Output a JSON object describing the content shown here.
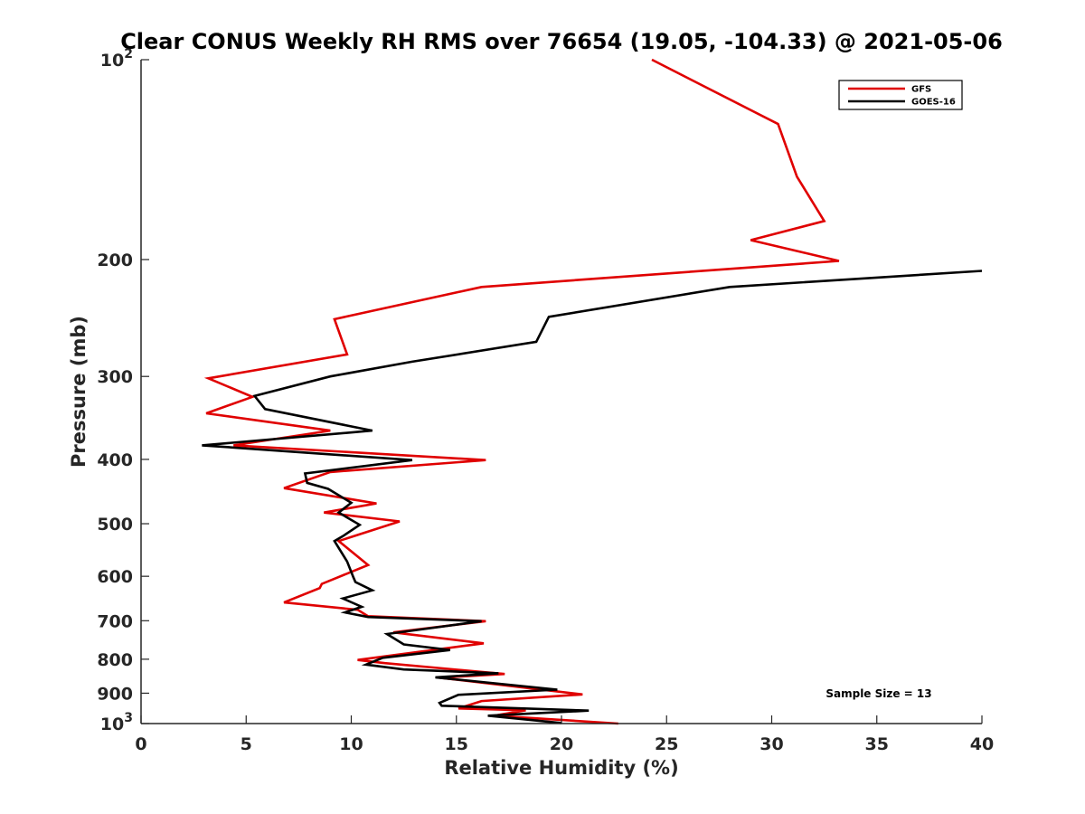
{
  "chart_data": {
    "type": "line",
    "title": "Clear CONUS Weekly RH RMS over 76654 (19.05, -104.33) @ 2021-05-06",
    "xlabel": "Relative Humidity (%)",
    "ylabel": "Pressure (mb)",
    "xlim": [
      0,
      40
    ],
    "ylim": [
      100,
      1000
    ],
    "yscale": "log",
    "y_reversed": true,
    "x_ticks": [
      0,
      5,
      10,
      15,
      20,
      25,
      30,
      35,
      40
    ],
    "x_tick_labels": [
      "0",
      "5",
      "10",
      "15",
      "20",
      "25",
      "30",
      "35",
      "40"
    ],
    "y_ticks": [
      100,
      200,
      300,
      400,
      500,
      600,
      700,
      800,
      900,
      1000
    ],
    "y_tick_labels": [
      {
        "base": "10",
        "exp": "2"
      },
      {
        "base": "200",
        "exp": ""
      },
      {
        "base": "300",
        "exp": ""
      },
      {
        "base": "400",
        "exp": ""
      },
      {
        "base": "500",
        "exp": ""
      },
      {
        "base": "600",
        "exp": ""
      },
      {
        "base": "700",
        "exp": ""
      },
      {
        "base": "800",
        "exp": ""
      },
      {
        "base": "900",
        "exp": ""
      },
      {
        "base": "10",
        "exp": "3"
      }
    ],
    "legend_position": "top-right",
    "annotation": "Sample Size = 13",
    "series": [
      {
        "name": "GFS",
        "color": "#e00000",
        "points": [
          [
            24.3,
            100
          ],
          [
            30.3,
            125
          ],
          [
            31.2,
            150
          ],
          [
            32.5,
            175
          ],
          [
            29.0,
            187
          ],
          [
            33.2,
            201
          ],
          [
            16.2,
            220
          ],
          [
            9.2,
            246
          ],
          [
            9.8,
            278
          ],
          [
            3.2,
            302
          ],
          [
            5.3,
            322
          ],
          [
            3.1,
            341
          ],
          [
            9.0,
            362
          ],
          [
            4.4,
            381
          ],
          [
            16.4,
            401
          ],
          [
            9.0,
            418
          ],
          [
            6.8,
            442
          ],
          [
            11.2,
            466
          ],
          [
            8.7,
            481
          ],
          [
            12.3,
            496
          ],
          [
            9.4,
            531
          ],
          [
            10.8,
            577
          ],
          [
            8.6,
            616
          ],
          [
            8.5,
            625
          ],
          [
            6.8,
            657
          ],
          [
            10.3,
            674
          ],
          [
            10.8,
            689
          ],
          [
            16.4,
            701
          ],
          [
            12.0,
            729
          ],
          [
            16.3,
            757
          ],
          [
            10.3,
            802
          ],
          [
            11.6,
            811
          ],
          [
            17.3,
            842
          ],
          [
            14.2,
            853
          ],
          [
            21.0,
            904
          ],
          [
            16.2,
            925
          ],
          [
            15.1,
            949
          ],
          [
            18.3,
            955
          ],
          [
            16.8,
            973
          ],
          [
            22.7,
            1000
          ]
        ]
      },
      {
        "name": "GOES-16",
        "color": "#000000",
        "points": [
          [
            40.0,
            208
          ],
          [
            28.0,
            220
          ],
          [
            19.4,
            244
          ],
          [
            18.8,
            266
          ],
          [
            12.9,
            285
          ],
          [
            9.0,
            300
          ],
          [
            5.4,
            321
          ],
          [
            5.9,
            336
          ],
          [
            11.0,
            362
          ],
          [
            2.9,
            381
          ],
          [
            12.9,
            401
          ],
          [
            7.8,
            420
          ],
          [
            7.9,
            434
          ],
          [
            8.9,
            443
          ],
          [
            10.0,
            465
          ],
          [
            9.4,
            481
          ],
          [
            10.4,
            502
          ],
          [
            9.6,
            522
          ],
          [
            9.2,
            531
          ],
          [
            9.8,
            570
          ],
          [
            10.1,
            602
          ],
          [
            10.2,
            612
          ],
          [
            11.0,
            630
          ],
          [
            9.6,
            648
          ],
          [
            10.5,
            667
          ],
          [
            9.7,
            680
          ],
          [
            10.8,
            691
          ],
          [
            16.2,
            701
          ],
          [
            11.7,
            733
          ],
          [
            12.5,
            760
          ],
          [
            14.7,
            775
          ],
          [
            11.5,
            796
          ],
          [
            10.7,
            815
          ],
          [
            12.5,
            829
          ],
          [
            17.0,
            840
          ],
          [
            14.0,
            852
          ],
          [
            19.8,
            889
          ],
          [
            15.1,
            905
          ],
          [
            14.2,
            931
          ],
          [
            14.3,
            940
          ],
          [
            21.3,
            956
          ],
          [
            16.5,
            973
          ],
          [
            20.0,
            998
          ]
        ]
      }
    ]
  }
}
